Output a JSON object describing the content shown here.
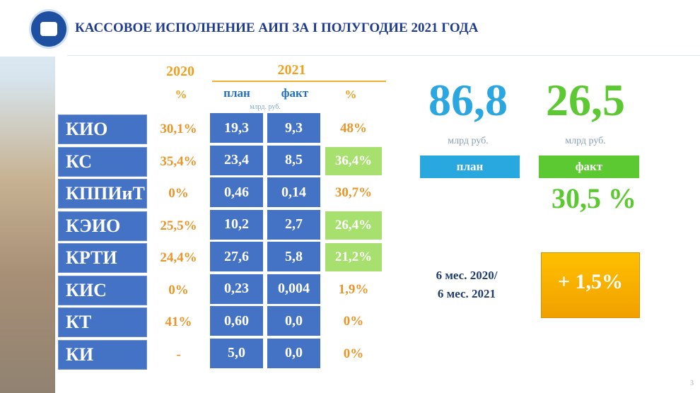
{
  "header": {
    "title": "КАССОВОЕ ИСПОЛНЕНИЕ АИП ЗА I ПОЛУГОДИЕ 2021 ГОДА"
  },
  "table": {
    "headers": {
      "year_2020": "2020",
      "year_2021": "2021",
      "pct_2020": "%",
      "plan": "план",
      "fact": "факт",
      "pct_2021": "%",
      "unit": "млрд. руб."
    },
    "rows": [
      {
        "name": "КИО",
        "pct_2020": "30,1%",
        "plan": "19,3",
        "fact": "9,3",
        "pct_2021": "48%",
        "highlighted": false
      },
      {
        "name": "КС",
        "pct_2020": "35,4%",
        "plan": "23,4",
        "fact": "8,5",
        "pct_2021": "36,4%",
        "highlighted": true
      },
      {
        "name": "КППИиТ",
        "pct_2020": "0%",
        "plan": "0,46",
        "fact": "0,14",
        "pct_2021": "30,7%",
        "highlighted": false
      },
      {
        "name": "КЭИО",
        "pct_2020": "25,5%",
        "plan": "10,2",
        "fact": "2,7",
        "pct_2021": "26,4%",
        "highlighted": true
      },
      {
        "name": "КРТИ",
        "pct_2020": "24,4%",
        "plan": "27,6",
        "fact": "5,8",
        "pct_2021": "21,2%",
        "highlighted": true
      },
      {
        "name": "КИС",
        "pct_2020": "0%",
        "plan": "0,23",
        "fact": "0,004",
        "pct_2021": "1,9%",
        "highlighted": false
      },
      {
        "name": "КТ",
        "pct_2020": "41%",
        "plan": "0,60",
        "fact": "0,0",
        "pct_2021": "0%",
        "highlighted": false
      },
      {
        "name": "КИ",
        "pct_2020": "-",
        "plan": "5,0",
        "fact": "0,0",
        "pct_2021": "0%",
        "highlighted": false
      }
    ]
  },
  "summary": {
    "plan_value": "86,8",
    "plan_unit": "млрд руб.",
    "plan_label": "план",
    "fact_value": "26,5",
    "fact_unit": "млрд руб.",
    "fact_label": "факт",
    "fact_pct": "30,5 %",
    "period_line1": "6 мес. 2020/",
    "period_line2": "6 мес. 2021",
    "growth": "+ 1,5%"
  },
  "footer": {
    "page_number": "3"
  }
}
